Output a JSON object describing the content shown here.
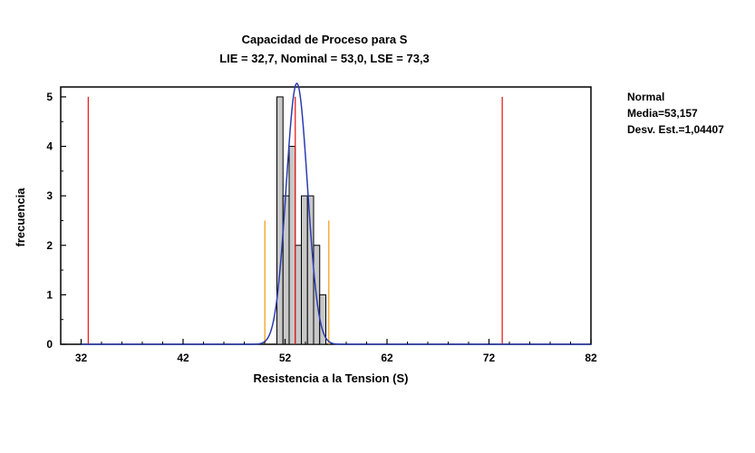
{
  "chart_data": {
    "type": "bar",
    "title": "Capacidad de Proceso para  S",
    "subtitle": "LIE = 32,7, Nominal = 53,0, LSE = 73,3",
    "xlabel": "Resistencia a la Tension (S)",
    "ylabel": "frecuencia",
    "xlim": [
      30,
      82
    ],
    "ylim": [
      0,
      5.2
    ],
    "xticks": [
      "32",
      "42",
      "52",
      "62",
      "72",
      "82"
    ],
    "xtick_values": [
      32,
      42,
      52,
      62,
      72,
      82
    ],
    "yticks": [
      "0",
      "1",
      "2",
      "3",
      "4",
      "5"
    ],
    "ytick_values": [
      0,
      1,
      2,
      3,
      4,
      5
    ],
    "bin_width": 0.6,
    "bins": [
      {
        "x0": 51.2,
        "count": 5
      },
      {
        "x0": 51.8,
        "count": 3
      },
      {
        "x0": 52.4,
        "count": 4
      },
      {
        "x0": 53.0,
        "count": 2
      },
      {
        "x0": 53.6,
        "count": 3
      },
      {
        "x0": 54.2,
        "count": 3
      },
      {
        "x0": 54.8,
        "count": 2
      },
      {
        "x0": 55.4,
        "count": 1
      }
    ],
    "spec_lines": {
      "LIE": 32.7,
      "Nominal": 53.0,
      "LSE": 73.3
    },
    "sigma_lines": [
      50.02,
      56.29
    ],
    "normal_fit": {
      "mean": 53.157,
      "sd": 1.04407,
      "n": 23
    },
    "legend": {
      "name": "Normal",
      "mean_label": "Media=53,157",
      "sd_label": "Desv. Est.=1,04407"
    },
    "colors": {
      "spec": "#e8201f",
      "sigma": "#f5a020",
      "curve": "#2a3cb0",
      "bar_fill": "#c8c8c8",
      "bar_stroke": "#000000"
    },
    "grid": false
  }
}
